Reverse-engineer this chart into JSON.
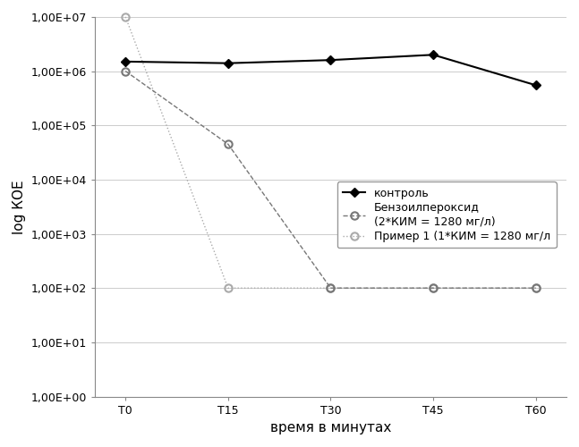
{
  "x_labels": [
    "T0",
    "T15",
    "T30",
    "T45",
    "T60"
  ],
  "x_positions": [
    0,
    1,
    2,
    3,
    4
  ],
  "control": [
    1500000.0,
    1400000.0,
    1600000.0,
    2000000.0,
    550000.0
  ],
  "benzoyl": [
    1000000.0,
    45000.0,
    100.0,
    100.0,
    100.0
  ],
  "primer1": [
    10000000.0,
    100.0,
    100.0,
    100.0,
    100.0
  ],
  "ylabel": "log КОЕ",
  "xlabel": "время в минутах",
  "ylim_min": 1.0,
  "ylim_max": 10000000.0,
  "legend_control": "контроль",
  "legend_benzoyl": "Бензоилпероксид\n(2*КИМ = 1280 мг/л)",
  "legend_primer": "Пример 1 (1*КИМ = 1280 мг/л",
  "bg_color": "#ffffff",
  "line_color_control": "#000000",
  "line_color_benzoyl": "#777777",
  "line_color_primer": "#aaaaaa",
  "grid_color": "#cccccc"
}
